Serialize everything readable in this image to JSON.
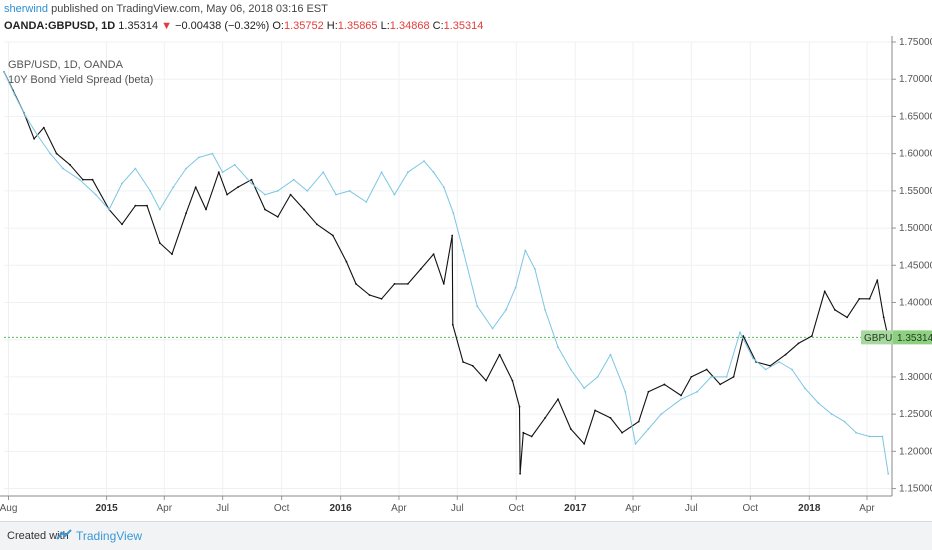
{
  "header": {
    "author": "sherwind",
    "published_text": " published on TradingView.com, May 06, 2018 03:16 EST"
  },
  "ohlc": {
    "symbol": "OANDA:GBPUSD, 1D",
    "last": "1.35314",
    "change": "−0.00438 (−0.32%)",
    "o_label": "O:",
    "o": "1.35752",
    "h_label": "H:",
    "h": "1.35865",
    "l_label": "L:",
    "l": "1.34868",
    "c_label": "C:",
    "c": "1.35314"
  },
  "footer": {
    "created_with": "Created with",
    "brand": "TradingView"
  },
  "chart_data": {
    "type": "line",
    "legend": [
      "GBP/USD, 1D, OANDA",
      "10Y Bond Yield Spread (beta)"
    ],
    "price_tag": {
      "label": "GBPUSD",
      "value": "1.35314",
      "y": 1.35314
    },
    "ylim": [
      1.14,
      1.75
    ],
    "yticks": [
      "1.75000",
      "1.70000",
      "1.65000",
      "1.60000",
      "1.55000",
      "1.50000",
      "1.45000",
      "1.40000",
      "1.35000",
      "1.30000",
      "1.25000",
      "1.20000",
      "1.15000"
    ],
    "xlim": [
      "2014-07-25",
      "2018-05-10"
    ],
    "xticks": [
      {
        "label": "Aug",
        "date": "2014-08-01",
        "bold": false
      },
      {
        "label": "2015",
        "date": "2015-01-01",
        "bold": true
      },
      {
        "label": "Apr",
        "date": "2015-04-01",
        "bold": false
      },
      {
        "label": "Jul",
        "date": "2015-07-01",
        "bold": false
      },
      {
        "label": "Oct",
        "date": "2015-10-01",
        "bold": false
      },
      {
        "label": "2016",
        "date": "2016-01-01",
        "bold": true
      },
      {
        "label": "Apr",
        "date": "2016-04-01",
        "bold": false
      },
      {
        "label": "Jul",
        "date": "2016-07-01",
        "bold": false
      },
      {
        "label": "Oct",
        "date": "2016-10-01",
        "bold": false
      },
      {
        "label": "2017",
        "date": "2017-01-01",
        "bold": true
      },
      {
        "label": "Apr",
        "date": "2017-04-01",
        "bold": false
      },
      {
        "label": "Jul",
        "date": "2017-07-01",
        "bold": false
      },
      {
        "label": "Oct",
        "date": "2017-10-01",
        "bold": false
      },
      {
        "label": "2018",
        "date": "2018-01-01",
        "bold": true
      },
      {
        "label": "Apr",
        "date": "2018-04-01",
        "bold": false
      }
    ],
    "series": [
      {
        "name": "GBP/USD, 1D, OANDA",
        "color": "#111111",
        "points": [
          [
            "2014-07-25",
            1.71
          ],
          [
            "2014-08-08",
            1.685
          ],
          [
            "2014-08-25",
            1.655
          ],
          [
            "2014-09-10",
            1.62
          ],
          [
            "2014-09-25",
            1.635
          ],
          [
            "2014-10-15",
            1.6
          ],
          [
            "2014-11-05",
            1.585
          ],
          [
            "2014-11-25",
            1.565
          ],
          [
            "2014-12-10",
            1.565
          ],
          [
            "2015-01-05",
            1.525
          ],
          [
            "2015-01-25",
            1.505
          ],
          [
            "2015-02-15",
            1.53
          ],
          [
            "2015-03-05",
            1.53
          ],
          [
            "2015-03-25",
            1.48
          ],
          [
            "2015-04-13",
            1.465
          ],
          [
            "2015-05-05",
            1.52
          ],
          [
            "2015-05-20",
            1.555
          ],
          [
            "2015-06-05",
            1.525
          ],
          [
            "2015-06-25",
            1.575
          ],
          [
            "2015-07-08",
            1.545
          ],
          [
            "2015-07-25",
            1.555
          ],
          [
            "2015-08-15",
            1.565
          ],
          [
            "2015-09-05",
            1.525
          ],
          [
            "2015-09-25",
            1.515
          ],
          [
            "2015-10-15",
            1.545
          ],
          [
            "2015-11-05",
            1.525
          ],
          [
            "2015-11-25",
            1.505
          ],
          [
            "2015-12-20",
            1.49
          ],
          [
            "2016-01-10",
            1.455
          ],
          [
            "2016-01-25",
            1.425
          ],
          [
            "2016-02-15",
            1.41
          ],
          [
            "2016-03-05",
            1.405
          ],
          [
            "2016-03-25",
            1.425
          ],
          [
            "2016-04-15",
            1.425
          ],
          [
            "2016-05-05",
            1.445
          ],
          [
            "2016-05-25",
            1.465
          ],
          [
            "2016-06-10",
            1.425
          ],
          [
            "2016-06-23",
            1.49
          ],
          [
            "2016-06-24",
            1.37
          ],
          [
            "2016-07-10",
            1.32
          ],
          [
            "2016-07-25",
            1.315
          ],
          [
            "2016-08-15",
            1.295
          ],
          [
            "2016-09-05",
            1.33
          ],
          [
            "2016-09-25",
            1.295
          ],
          [
            "2016-10-06",
            1.26
          ],
          [
            "2016-10-07",
            1.17
          ],
          [
            "2016-10-12",
            1.225
          ],
          [
            "2016-10-25",
            1.22
          ],
          [
            "2016-11-15",
            1.245
          ],
          [
            "2016-12-05",
            1.27
          ],
          [
            "2016-12-25",
            1.23
          ],
          [
            "2017-01-15",
            1.21
          ],
          [
            "2017-02-01",
            1.255
          ],
          [
            "2017-02-25",
            1.245
          ],
          [
            "2017-03-15",
            1.225
          ],
          [
            "2017-04-10",
            1.24
          ],
          [
            "2017-04-25",
            1.28
          ],
          [
            "2017-05-20",
            1.29
          ],
          [
            "2017-06-15",
            1.275
          ],
          [
            "2017-07-01",
            1.3
          ],
          [
            "2017-07-25",
            1.31
          ],
          [
            "2017-08-15",
            1.29
          ],
          [
            "2017-09-05",
            1.3
          ],
          [
            "2017-09-20",
            1.355
          ],
          [
            "2017-10-10",
            1.32
          ],
          [
            "2017-11-01",
            1.315
          ],
          [
            "2017-11-25",
            1.33
          ],
          [
            "2017-12-15",
            1.345
          ],
          [
            "2018-01-05",
            1.355
          ],
          [
            "2018-01-25",
            1.415
          ],
          [
            "2018-02-10",
            1.39
          ],
          [
            "2018-03-01",
            1.38
          ],
          [
            "2018-03-20",
            1.405
          ],
          [
            "2018-04-05",
            1.405
          ],
          [
            "2018-04-17",
            1.43
          ],
          [
            "2018-04-27",
            1.38
          ],
          [
            "2018-05-04",
            1.353
          ]
        ]
      },
      {
        "name": "10Y Bond Yield Spread (beta)",
        "color": "#7cc6e3",
        "points": [
          [
            "2014-07-25",
            1.71
          ],
          [
            "2014-08-10",
            1.68
          ],
          [
            "2014-08-28",
            1.65
          ],
          [
            "2014-09-15",
            1.625
          ],
          [
            "2014-10-05",
            1.6
          ],
          [
            "2014-10-25",
            1.58
          ],
          [
            "2014-11-20",
            1.565
          ],
          [
            "2014-12-15",
            1.545
          ],
          [
            "2015-01-05",
            1.525
          ],
          [
            "2015-01-25",
            1.56
          ],
          [
            "2015-02-15",
            1.58
          ],
          [
            "2015-03-10",
            1.55
          ],
          [
            "2015-03-25",
            1.525
          ],
          [
            "2015-04-15",
            1.555
          ],
          [
            "2015-05-05",
            1.58
          ],
          [
            "2015-05-25",
            1.595
          ],
          [
            "2015-06-15",
            1.6
          ],
          [
            "2015-07-01",
            1.575
          ],
          [
            "2015-07-20",
            1.585
          ],
          [
            "2015-08-15",
            1.56
          ],
          [
            "2015-09-05",
            1.545
          ],
          [
            "2015-09-25",
            1.55
          ],
          [
            "2015-10-20",
            1.565
          ],
          [
            "2015-11-10",
            1.55
          ],
          [
            "2015-12-05",
            1.575
          ],
          [
            "2015-12-25",
            1.545
          ],
          [
            "2016-01-15",
            1.55
          ],
          [
            "2016-02-10",
            1.535
          ],
          [
            "2016-03-05",
            1.575
          ],
          [
            "2016-03-25",
            1.545
          ],
          [
            "2016-04-15",
            1.575
          ],
          [
            "2016-05-10",
            1.59
          ],
          [
            "2016-05-25",
            1.575
          ],
          [
            "2016-06-10",
            1.555
          ],
          [
            "2016-06-25",
            1.52
          ],
          [
            "2016-07-10",
            1.47
          ],
          [
            "2016-08-01",
            1.395
          ],
          [
            "2016-08-25",
            1.365
          ],
          [
            "2016-09-15",
            1.39
          ],
          [
            "2016-09-30",
            1.42
          ],
          [
            "2016-10-15",
            1.47
          ],
          [
            "2016-10-30",
            1.445
          ],
          [
            "2016-11-15",
            1.39
          ],
          [
            "2016-12-05",
            1.34
          ],
          [
            "2016-12-25",
            1.31
          ],
          [
            "2017-01-15",
            1.285
          ],
          [
            "2017-02-05",
            1.3
          ],
          [
            "2017-02-25",
            1.33
          ],
          [
            "2017-03-20",
            1.28
          ],
          [
            "2017-04-05",
            1.21
          ],
          [
            "2017-04-25",
            1.23
          ],
          [
            "2017-05-15",
            1.25
          ],
          [
            "2017-06-15",
            1.27
          ],
          [
            "2017-07-10",
            1.28
          ],
          [
            "2017-08-01",
            1.3
          ],
          [
            "2017-08-25",
            1.3
          ],
          [
            "2017-09-15",
            1.36
          ],
          [
            "2017-10-05",
            1.325
          ],
          [
            "2017-10-25",
            1.31
          ],
          [
            "2017-11-15",
            1.32
          ],
          [
            "2017-12-05",
            1.31
          ],
          [
            "2017-12-25",
            1.285
          ],
          [
            "2018-01-15",
            1.265
          ],
          [
            "2018-02-05",
            1.25
          ],
          [
            "2018-02-25",
            1.24
          ],
          [
            "2018-03-15",
            1.225
          ],
          [
            "2018-04-05",
            1.22
          ],
          [
            "2018-04-25",
            1.22
          ],
          [
            "2018-05-04",
            1.17
          ]
        ]
      }
    ]
  }
}
